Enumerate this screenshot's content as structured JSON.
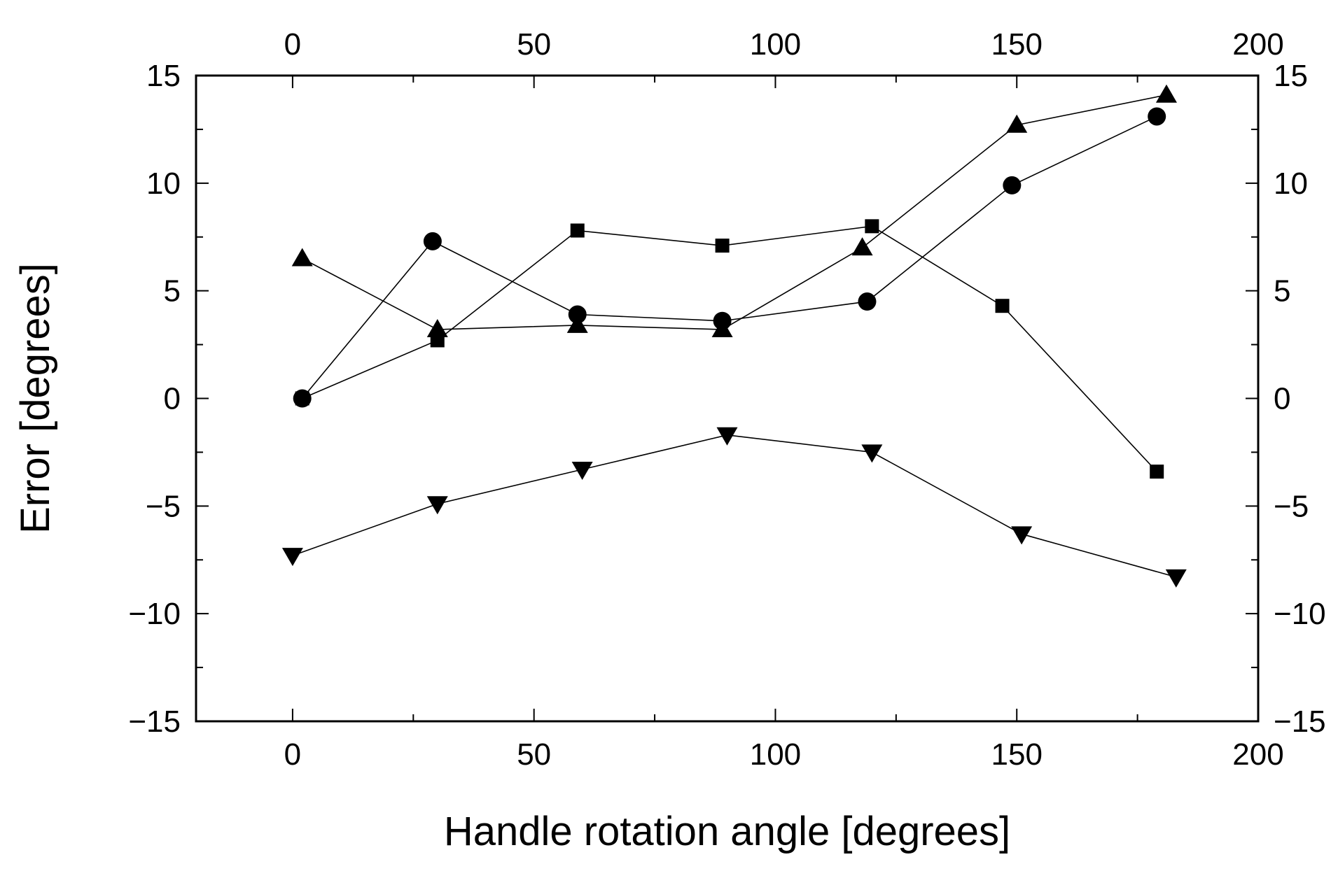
{
  "chart_data": {
    "type": "line",
    "title": "",
    "xlabel": "Handle rotation angle [degrees]",
    "ylabel": "Error [degrees]",
    "xlim": [
      -20,
      200
    ],
    "ylim": [
      -15,
      15
    ],
    "x_ticks": [
      0,
      50,
      100,
      150,
      200
    ],
    "y_ticks": [
      -15,
      -10,
      -5,
      0,
      5,
      10,
      15
    ],
    "x_tick_labels": [
      "0",
      "50",
      "100",
      "150",
      "200"
    ],
    "y_tick_labels": [
      "−15",
      "−10",
      "−5",
      "0",
      "5",
      "10",
      "15"
    ],
    "top_tick_labels": [
      "0",
      "50",
      "100",
      "150",
      "200"
    ],
    "right_tick_labels": [
      "−15",
      "−10",
      "−5",
      "0",
      "5",
      "10",
      "15"
    ],
    "grid": false,
    "legend": "none",
    "series": [
      {
        "name": "square",
        "marker": "square",
        "x": [
          2,
          30,
          59,
          89,
          120,
          147,
          179
        ],
        "y": [
          0,
          2.7,
          7.8,
          7.1,
          8.0,
          4.3,
          -3.4
        ]
      },
      {
        "name": "circle",
        "marker": "circle",
        "x": [
          2,
          29,
          59,
          89,
          119,
          149,
          179
        ],
        "y": [
          0,
          7.3,
          3.9,
          3.6,
          4.5,
          9.9,
          13.1
        ]
      },
      {
        "name": "triangle-up",
        "marker": "triangle-up",
        "x": [
          2,
          30,
          59,
          89,
          118,
          150,
          181
        ],
        "y": [
          6.5,
          3.2,
          3.4,
          3.2,
          7.0,
          12.7,
          14.1
        ]
      },
      {
        "name": "triangle-down",
        "marker": "triangle-down",
        "x": [
          0,
          30,
          60,
          90,
          120,
          151,
          183
        ],
        "y": [
          -7.3,
          -4.9,
          -3.3,
          -1.7,
          -2.5,
          -6.3,
          -8.3
        ]
      }
    ]
  }
}
